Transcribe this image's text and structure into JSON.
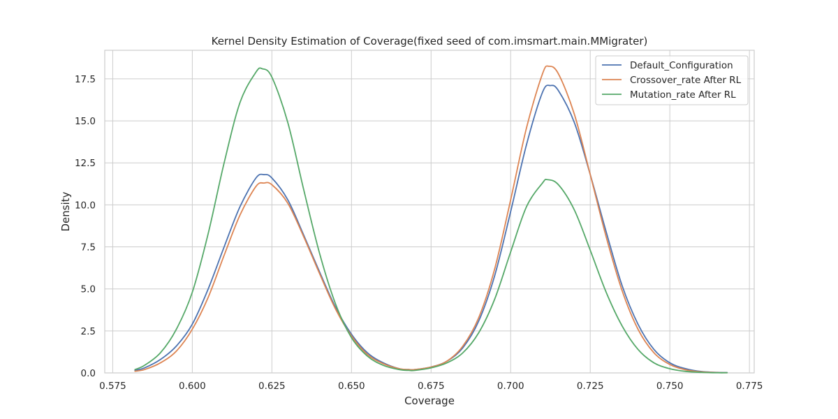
{
  "chart_data": {
    "type": "line",
    "title": "Kernel Density Estimation of Coverage(fixed seed of com.imsmart.main.MMigrater)",
    "xlabel": "Coverage",
    "ylabel": "Density",
    "xlim": [
      0.5725,
      0.7765
    ],
    "ylim": [
      0,
      19.2
    ],
    "xticks": [
      0.575,
      0.6,
      0.625,
      0.65,
      0.675,
      0.7,
      0.725,
      0.75,
      0.775
    ],
    "xtick_labels": [
      "0.575",
      "0.600",
      "0.625",
      "0.650",
      "0.675",
      "0.700",
      "0.725",
      "0.750",
      "0.775"
    ],
    "yticks": [
      0,
      2.5,
      5,
      7.5,
      10,
      12.5,
      15,
      17.5
    ],
    "ytick_labels": [
      "0.0",
      "2.5",
      "5.0",
      "7.5",
      "10.0",
      "12.5",
      "15.0",
      "17.5"
    ],
    "grid": true,
    "legend_position": "top-right",
    "series": [
      {
        "name": "Default_Configuration",
        "color": "#4c72b0",
        "x": [
          0.582,
          0.585,
          0.59,
          0.595,
          0.6,
          0.605,
          0.61,
          0.615,
          0.62,
          0.6225,
          0.625,
          0.63,
          0.635,
          0.64,
          0.645,
          0.65,
          0.655,
          0.66,
          0.665,
          0.668,
          0.67,
          0.675,
          0.68,
          0.685,
          0.69,
          0.695,
          0.7,
          0.705,
          0.71,
          0.7125,
          0.715,
          0.72,
          0.725,
          0.73,
          0.735,
          0.74,
          0.745,
          0.75,
          0.755,
          0.76,
          0.765,
          0.768
        ],
        "y": [
          0.15,
          0.3,
          0.8,
          1.6,
          2.9,
          5.0,
          7.5,
          9.9,
          11.6,
          11.8,
          11.6,
          10.3,
          8.2,
          6.0,
          3.9,
          2.3,
          1.2,
          0.6,
          0.25,
          0.2,
          0.2,
          0.35,
          0.7,
          1.5,
          3.1,
          5.8,
          9.6,
          13.6,
          16.7,
          17.1,
          16.8,
          14.9,
          11.8,
          8.4,
          5.2,
          2.9,
          1.4,
          0.6,
          0.25,
          0.08,
          0.03,
          0.02
        ]
      },
      {
        "name": "Crossover_rate After RL",
        "color": "#dd8452",
        "x": [
          0.582,
          0.585,
          0.59,
          0.595,
          0.6,
          0.605,
          0.61,
          0.615,
          0.62,
          0.6225,
          0.625,
          0.63,
          0.635,
          0.64,
          0.645,
          0.65,
          0.655,
          0.66,
          0.665,
          0.668,
          0.67,
          0.675,
          0.68,
          0.685,
          0.69,
          0.695,
          0.7,
          0.705,
          0.71,
          0.712,
          0.715,
          0.72,
          0.725,
          0.73,
          0.735,
          0.74,
          0.745,
          0.75,
          0.755,
          0.76,
          0.765,
          0.768
        ],
        "y": [
          0.1,
          0.2,
          0.6,
          1.3,
          2.6,
          4.5,
          7.0,
          9.4,
          11.1,
          11.3,
          11.2,
          10.1,
          8.1,
          5.9,
          3.8,
          2.2,
          1.1,
          0.55,
          0.25,
          0.2,
          0.2,
          0.35,
          0.7,
          1.6,
          3.3,
          6.2,
          10.3,
          14.6,
          17.8,
          18.25,
          17.8,
          15.4,
          11.8,
          8.1,
          4.9,
          2.6,
          1.2,
          0.5,
          0.18,
          0.06,
          0.02,
          0.01
        ]
      },
      {
        "name": "Mutation_rate After RL",
        "color": "#55a868",
        "x": [
          0.582,
          0.585,
          0.59,
          0.595,
          0.6,
          0.605,
          0.61,
          0.615,
          0.62,
          0.622,
          0.625,
          0.63,
          0.635,
          0.64,
          0.645,
          0.65,
          0.655,
          0.66,
          0.665,
          0.668,
          0.67,
          0.675,
          0.68,
          0.685,
          0.69,
          0.695,
          0.7,
          0.705,
          0.71,
          0.7115,
          0.715,
          0.72,
          0.725,
          0.73,
          0.735,
          0.74,
          0.745,
          0.75,
          0.755,
          0.76,
          0.765,
          0.768
        ],
        "y": [
          0.2,
          0.45,
          1.2,
          2.6,
          4.8,
          8.3,
          12.5,
          16.1,
          17.9,
          18.1,
          17.6,
          14.9,
          10.9,
          7.1,
          4.1,
          2.1,
          1.0,
          0.45,
          0.2,
          0.15,
          0.15,
          0.3,
          0.6,
          1.2,
          2.4,
          4.4,
          7.2,
          9.9,
          11.3,
          11.5,
          11.2,
          9.7,
          7.3,
          4.8,
          2.8,
          1.4,
          0.6,
          0.25,
          0.09,
          0.03,
          0.01,
          0.01
        ]
      }
    ]
  }
}
